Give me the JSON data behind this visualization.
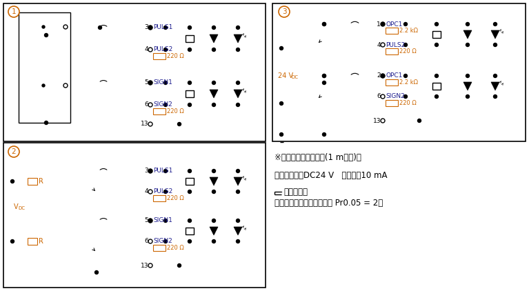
{
  "bg_color": "#ffffff",
  "lc": "#000000",
  "oc": "#cc6600",
  "bc": "#1a1a8c",
  "note1": "※配线长度，请控制在(1 m以内)。",
  "note2": "最大输入电压DC24 V   额定电洗10 mA",
  "note3": "为双绞线。",
  "note4": "使用开路集电极时推荐设定 Pr0.05 = 2。"
}
